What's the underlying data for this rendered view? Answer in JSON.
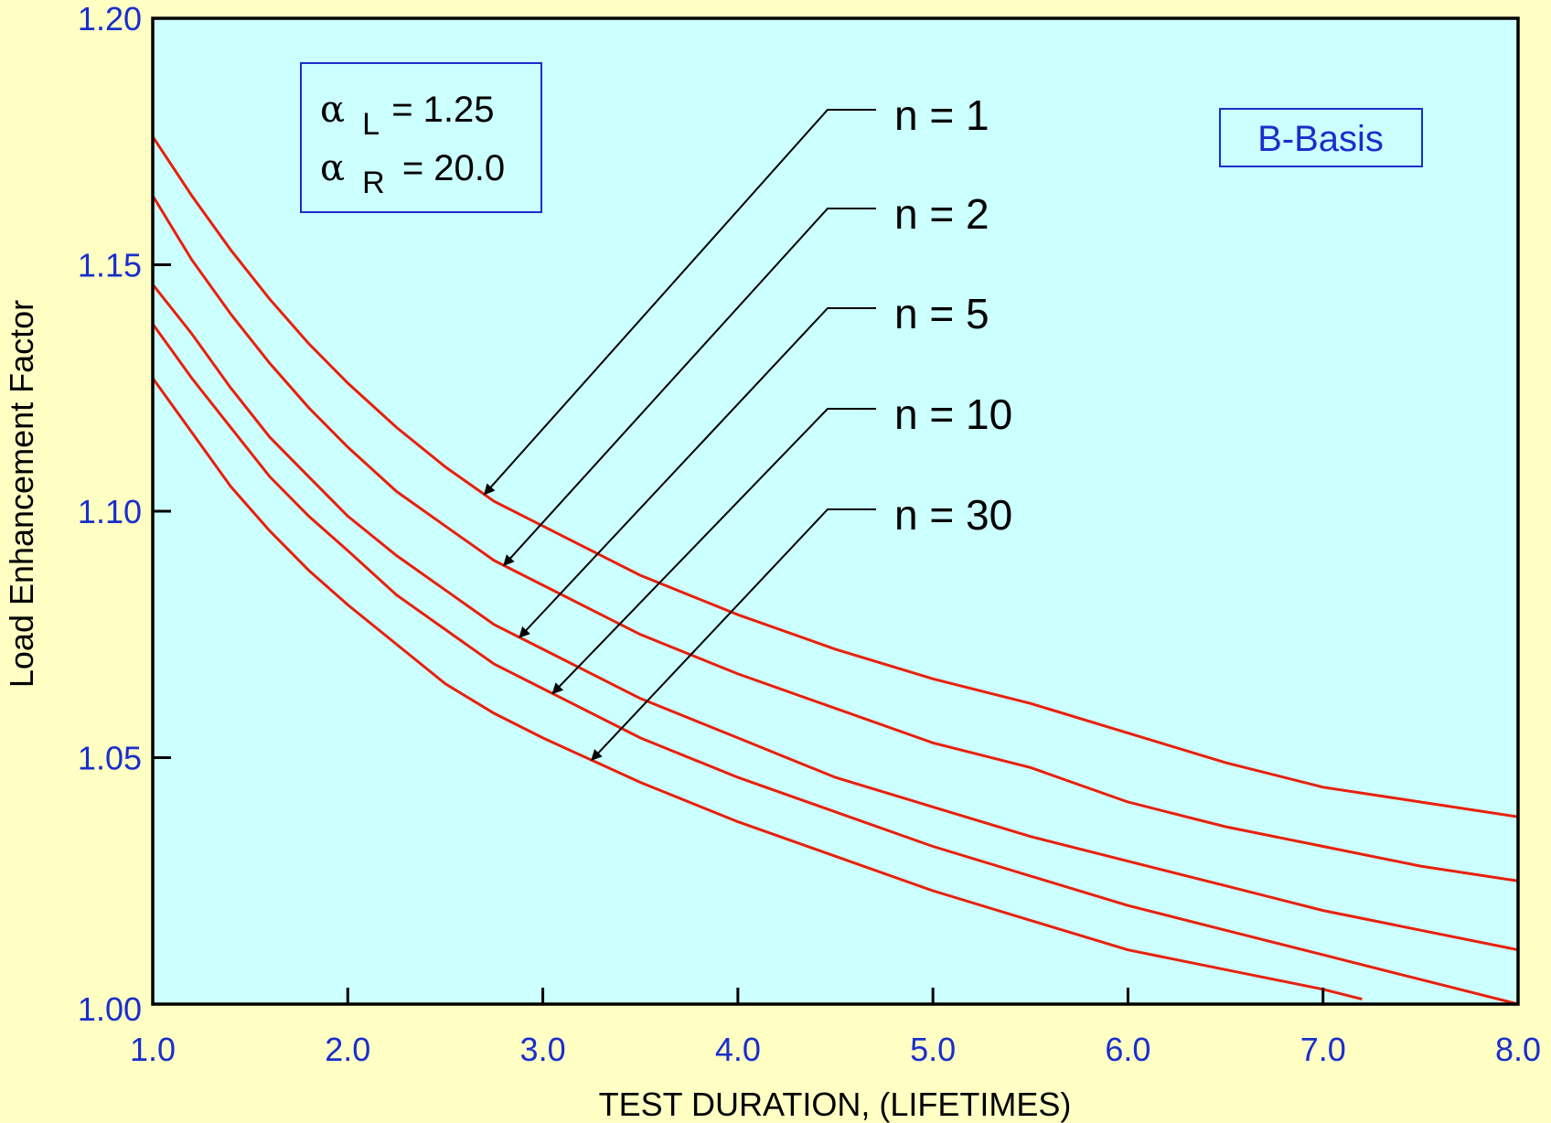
{
  "colors": {
    "page_background": "#FFFFC4",
    "plot_background": "#CCFFFF",
    "curve": "#E8200C",
    "tick_label": "#1A2ECC",
    "frame": "#000000"
  },
  "chart_data": {
    "type": "line",
    "title": "",
    "xlabel": "TEST DURATION,  (LIFETIMES)",
    "ylabel": "Load Enhancement Factor",
    "xlim": [
      1.0,
      8.0
    ],
    "ylim": [
      1.0,
      1.2
    ],
    "x_ticks": [
      "1.0",
      "2.0",
      "3.0",
      "4.0",
      "5.0",
      "6.0",
      "7.0",
      "8.0"
    ],
    "y_ticks": [
      "1.00",
      "1.05",
      "1.10",
      "1.15",
      "1.20"
    ],
    "grid": false,
    "series": [
      {
        "name": "n = 1",
        "points": [
          [
            1.0,
            1.176
          ],
          [
            1.2,
            1.164
          ],
          [
            1.4,
            1.153
          ],
          [
            1.6,
            1.143
          ],
          [
            1.8,
            1.134
          ],
          [
            2.0,
            1.126
          ],
          [
            2.25,
            1.117
          ],
          [
            2.5,
            1.109
          ],
          [
            2.75,
            1.102
          ],
          [
            3.0,
            1.097
          ],
          [
            3.5,
            1.087
          ],
          [
            4.0,
            1.079
          ],
          [
            4.5,
            1.072
          ],
          [
            5.0,
            1.066
          ],
          [
            5.5,
            1.061
          ],
          [
            6.0,
            1.055
          ],
          [
            6.5,
            1.049
          ],
          [
            7.0,
            1.044
          ],
          [
            7.5,
            1.041
          ],
          [
            8.0,
            1.038
          ]
        ]
      },
      {
        "name": "n = 2",
        "points": [
          [
            1.0,
            1.164
          ],
          [
            1.2,
            1.151
          ],
          [
            1.4,
            1.14
          ],
          [
            1.6,
            1.13
          ],
          [
            1.8,
            1.121
          ],
          [
            2.0,
            1.113
          ],
          [
            2.25,
            1.104
          ],
          [
            2.5,
            1.097
          ],
          [
            2.75,
            1.09
          ],
          [
            3.0,
            1.085
          ],
          [
            3.5,
            1.075
          ],
          [
            4.0,
            1.067
          ],
          [
            4.5,
            1.06
          ],
          [
            5.0,
            1.053
          ],
          [
            5.5,
            1.048
          ],
          [
            6.0,
            1.041
          ],
          [
            6.5,
            1.036
          ],
          [
            7.0,
            1.032
          ],
          [
            7.5,
            1.028
          ],
          [
            8.0,
            1.025
          ]
        ]
      },
      {
        "name": "n = 5",
        "points": [
          [
            1.0,
            1.146
          ],
          [
            1.2,
            1.136
          ],
          [
            1.4,
            1.125
          ],
          [
            1.6,
            1.115
          ],
          [
            1.8,
            1.107
          ],
          [
            2.0,
            1.099
          ],
          [
            2.25,
            1.091
          ],
          [
            2.5,
            1.084
          ],
          [
            2.75,
            1.077
          ],
          [
            3.0,
            1.072
          ],
          [
            3.5,
            1.062
          ],
          [
            4.0,
            1.054
          ],
          [
            4.5,
            1.046
          ],
          [
            5.0,
            1.04
          ],
          [
            5.5,
            1.034
          ],
          [
            6.0,
            1.029
          ],
          [
            6.5,
            1.024
          ],
          [
            7.0,
            1.019
          ],
          [
            7.5,
            1.015
          ],
          [
            8.0,
            1.011
          ]
        ]
      },
      {
        "name": "n = 10",
        "points": [
          [
            1.0,
            1.138
          ],
          [
            1.2,
            1.127
          ],
          [
            1.4,
            1.117
          ],
          [
            1.6,
            1.107
          ],
          [
            1.8,
            1.099
          ],
          [
            2.0,
            1.092
          ],
          [
            2.25,
            1.083
          ],
          [
            2.5,
            1.076
          ],
          [
            2.75,
            1.069
          ],
          [
            3.0,
            1.064
          ],
          [
            3.5,
            1.054
          ],
          [
            4.0,
            1.046
          ],
          [
            4.5,
            1.039
          ],
          [
            5.0,
            1.032
          ],
          [
            5.5,
            1.026
          ],
          [
            6.0,
            1.02
          ],
          [
            6.5,
            1.015
          ],
          [
            7.0,
            1.01
          ],
          [
            7.5,
            1.005
          ],
          [
            8.0,
            1.0
          ]
        ]
      },
      {
        "name": "n = 30",
        "points": [
          [
            1.0,
            1.127
          ],
          [
            1.2,
            1.116
          ],
          [
            1.4,
            1.105
          ],
          [
            1.6,
            1.096
          ],
          [
            1.8,
            1.088
          ],
          [
            2.0,
            1.081
          ],
          [
            2.25,
            1.073
          ],
          [
            2.5,
            1.065
          ],
          [
            2.75,
            1.059
          ],
          [
            3.0,
            1.054
          ],
          [
            3.5,
            1.045
          ],
          [
            4.0,
            1.037
          ],
          [
            4.5,
            1.03
          ],
          [
            5.0,
            1.023
          ],
          [
            5.5,
            1.017
          ],
          [
            6.0,
            1.011
          ],
          [
            6.5,
            1.007
          ],
          [
            7.0,
            1.003
          ],
          [
            7.2,
            1.001
          ]
        ]
      }
    ],
    "annotations": {
      "params": {
        "alpha": "α",
        "line1_sub": "L",
        "line1_rest": "= 1.25",
        "line2_sub": "R",
        "line2_rest": "= 20.0"
      },
      "basis_label": "B-Basis",
      "callouts": [
        {
          "label": "n = 1",
          "series": 0,
          "arrow_x": 2.7
        },
        {
          "label": "n = 2",
          "series": 1,
          "arrow_x": 2.8
        },
        {
          "label": "n = 5",
          "series": 2,
          "arrow_x": 2.88
        },
        {
          "label": "n = 10",
          "series": 3,
          "arrow_x": 3.05
        },
        {
          "label": "n = 30",
          "series": 4,
          "arrow_x": 3.25
        }
      ]
    }
  }
}
